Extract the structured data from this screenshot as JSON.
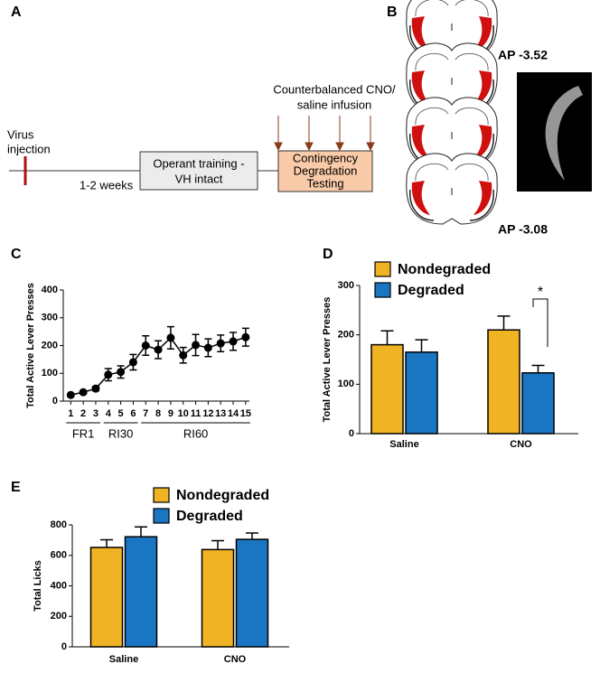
{
  "panels": {
    "a": "A",
    "b": "B"
  },
  "timeline": {
    "virus": [
      "Virus",
      "injection"
    ],
    "interval": "1-2 weeks",
    "training": [
      "Operant training -",
      "VH intact"
    ],
    "infusion": [
      "Counterbalanced CNO/",
      "saline infusion"
    ],
    "testing": [
      "Contingency",
      "Degradation",
      "Testing"
    ]
  },
  "histology": {
    "top_label": "AP -3.52",
    "bottom_label": "AP -3.08"
  },
  "chart_data": [
    {
      "type": "line",
      "label": "C",
      "ylabel": "Total  Active Lever  Presses",
      "x": [
        1,
        2,
        3,
        4,
        5,
        6,
        7,
        8,
        9,
        10,
        11,
        12,
        13,
        14,
        15
      ],
      "xticks": [
        1,
        2,
        3,
        4,
        5,
        6,
        7,
        8,
        9,
        10,
        11,
        12,
        13,
        14,
        15
      ],
      "xlim": [
        0.4,
        15.3
      ],
      "groups": [
        {
          "label": "FR1",
          "range": [
            1,
            3
          ]
        },
        {
          "label": "RI30",
          "range": [
            4,
            6
          ]
        },
        {
          "label": "RI60",
          "range": [
            7,
            15
          ]
        }
      ],
      "series": [
        {
          "color": "#000000",
          "values": [
            22,
            32,
            45,
            95,
            105,
            140,
            200,
            185,
            228,
            165,
            202,
            192,
            208,
            215,
            230
          ],
          "errors": [
            5,
            5,
            8,
            22,
            22,
            28,
            35,
            32,
            40,
            28,
            38,
            32,
            30,
            32,
            32
          ]
        }
      ],
      "ylim": [
        0,
        400
      ],
      "yticks": [
        0,
        100,
        200,
        300,
        400
      ],
      "grid": false
    },
    {
      "type": "bar",
      "label": "D",
      "ylabel": "Total Active Lever  Presses",
      "categories": [
        "Saline",
        "CNO"
      ],
      "series": [
        {
          "name": "Nondegraded",
          "color": "#f0b323",
          "values": [
            180,
            210
          ],
          "errors": [
            28,
            28
          ]
        },
        {
          "name": "Degraded",
          "color": "#1a75c2",
          "values": [
            165,
            123
          ],
          "errors": [
            25,
            15
          ]
        }
      ],
      "annotation": "*",
      "ylim": [
        0,
        300
      ],
      "yticks": [
        0,
        100,
        200,
        300
      ],
      "grid": false
    },
    {
      "type": "bar",
      "label": "E",
      "ylabel": "Total Licks",
      "categories": [
        "Saline",
        "CNO"
      ],
      "series": [
        {
          "name": "Nondegraded",
          "color": "#f0b323",
          "values": [
            652,
            638
          ],
          "errors": [
            50,
            58
          ]
        },
        {
          "name": "Degraded",
          "color": "#1a75c2",
          "values": [
            722,
            705
          ],
          "errors": [
            65,
            42
          ]
        }
      ],
      "ylim": [
        0,
        800
      ],
      "yticks": [
        0,
        200,
        400,
        600,
        800
      ],
      "grid": false
    }
  ]
}
